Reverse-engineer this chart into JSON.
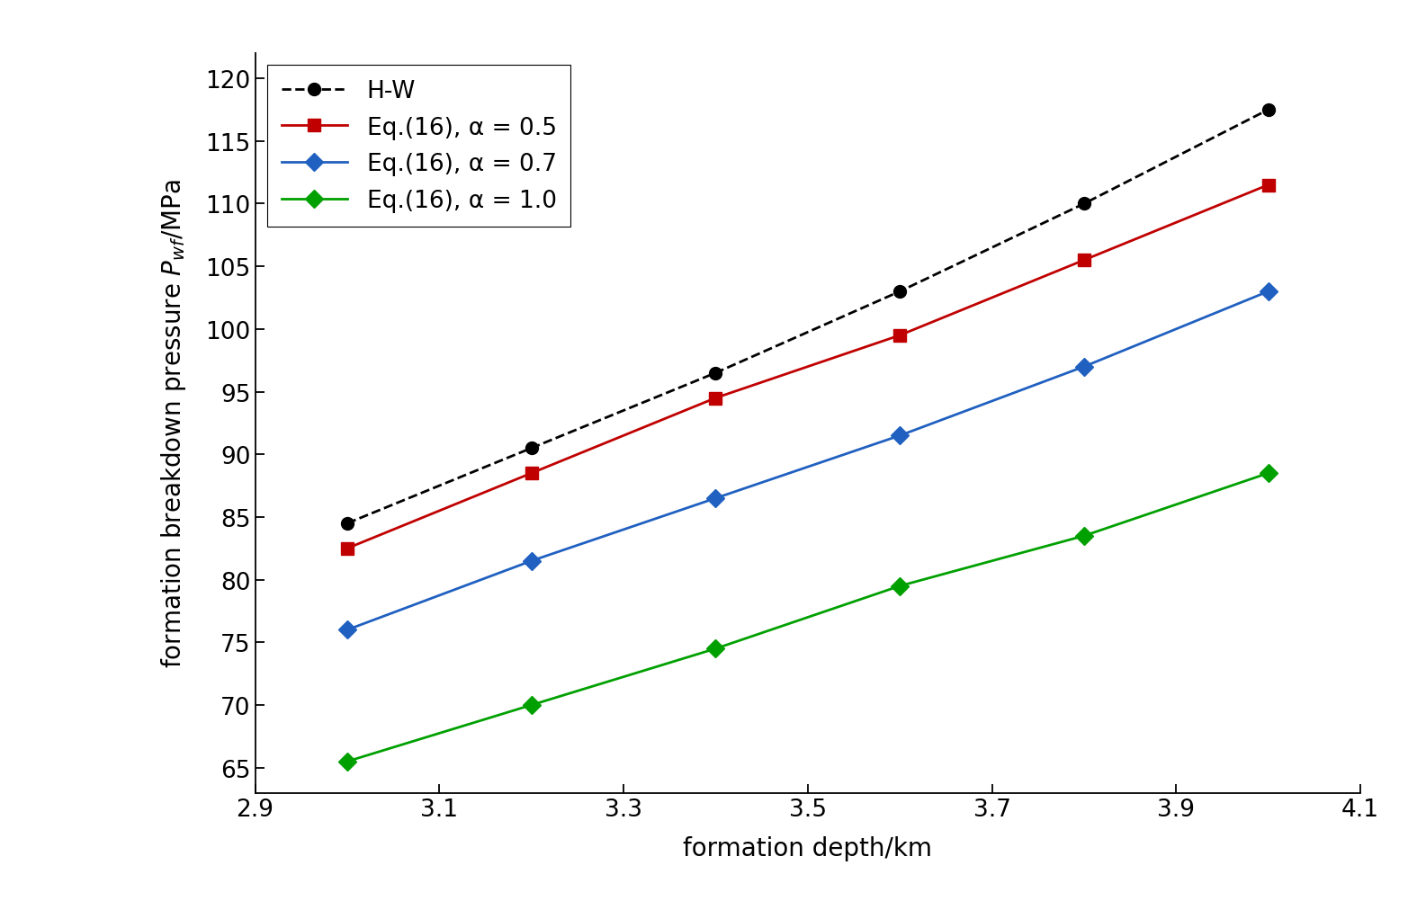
{
  "x": [
    3.0,
    3.2,
    3.4,
    3.6,
    3.8,
    4.0
  ],
  "hw": [
    84.5,
    90.5,
    96.5,
    103.0,
    110.0,
    117.5
  ],
  "eq16_05": [
    82.5,
    88.5,
    94.5,
    99.5,
    105.5,
    111.5
  ],
  "eq16_07": [
    76.0,
    81.5,
    86.5,
    91.5,
    97.0,
    103.0
  ],
  "eq16_10": [
    65.5,
    70.0,
    74.5,
    79.5,
    83.5,
    88.5
  ],
  "hw_color": "#000000",
  "eq05_color": "#c00000",
  "eq07_color": "#2060c0",
  "eq10_color": "#00a000",
  "xlabel": "formation depth/km",
  "ylabel_line1": "formation breakdown pressure ",
  "ylabel_pwf": "$P_{wf}$",
  "ylabel_line2": "/MPa",
  "xlim": [
    2.9,
    4.1
  ],
  "ylim": [
    63,
    122
  ],
  "yticks": [
    65,
    70,
    75,
    80,
    85,
    90,
    95,
    100,
    105,
    110,
    115,
    120
  ],
  "xticks": [
    2.9,
    3.1,
    3.3,
    3.5,
    3.7,
    3.9,
    4.1
  ],
  "legend_hw": "H-W",
  "legend_05": "Eq.(16), α = 0.5",
  "legend_07": "Eq.(16), α = 0.7",
  "legend_10": "Eq.(16), α = 1.0",
  "title_fontsize": 20,
  "label_fontsize": 20,
  "tick_fontsize": 19,
  "legend_fontsize": 19
}
